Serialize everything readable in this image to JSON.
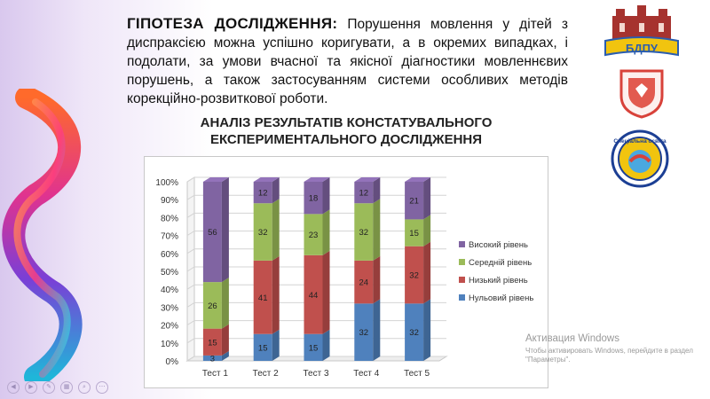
{
  "hypothesis": {
    "title": "ГІПОТЕЗА ДОСЛІДЖЕННЯ:",
    "text": "Порушення мовлення у дітей з диспраксією можна успішно коригувати, а в окремих випадках, і подолати, за умови вчасної та якісної діагностики мовленнєвих порушень, а також застосуванням системи особливих методів корекційно-розвиткової роботи."
  },
  "chart_title_line1": "АНАЛІЗ РЕЗУЛЬТАТІВ КОНСТАТУВАЛЬНОГО",
  "chart_title_line2": "ЕКСПЕРИМЕНТАЛЬНОГО ДОСЛІДЖЕННЯ",
  "logos": {
    "top_text": "БДПУ",
    "bottom_text": "Спеціальна освіта"
  },
  "watermark": {
    "line1": "Активация Windows",
    "line2": "Чтобы активировать Windows, перейдите в раздел \"Параметры\"."
  },
  "chart_data": {
    "type": "bar",
    "stacked": true,
    "percent": true,
    "categories": [
      "Тест 1",
      "Тест 2",
      "Тест 3",
      "Тест 4",
      "Тест 5"
    ],
    "series": [
      {
        "name": "Нульовий рівень",
        "color": "#4f81bd",
        "values": [
          3,
          15,
          15,
          32,
          32
        ]
      },
      {
        "name": "Низький рівень",
        "color": "#c0504d",
        "values": [
          15,
          41,
          44,
          24,
          32
        ]
      },
      {
        "name": "Середній рівень",
        "color": "#9bbb59",
        "values": [
          26,
          32,
          23,
          32,
          15
        ]
      },
      {
        "name": "Високий рівень",
        "color": "#8064a2",
        "values": [
          56,
          12,
          18,
          12,
          21
        ]
      }
    ],
    "y_ticks": [
      "0%",
      "10%",
      "20%",
      "30%",
      "40%",
      "50%",
      "60%",
      "70%",
      "80%",
      "90%",
      "100%"
    ],
    "ylim": [
      0,
      100
    ],
    "grid": true,
    "legend_position": "right"
  }
}
